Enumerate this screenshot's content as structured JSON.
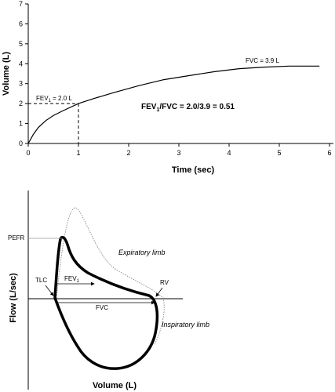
{
  "chart_data": [
    {
      "type": "line",
      "title": "",
      "xlabel": "Time (sec)",
      "ylabel": "Volume (L)",
      "xlim": [
        0,
        6
      ],
      "ylim": [
        0,
        7
      ],
      "xticks": [
        "0",
        "1",
        "2",
        "3",
        "4",
        "5",
        "6"
      ],
      "yticks": [
        "0",
        "1",
        "2",
        "3",
        "4",
        "5",
        "6",
        "7"
      ],
      "grid": false,
      "series": [
        {
          "x": [
            0,
            0.1,
            0.2,
            0.35,
            0.5,
            0.7,
            1.0,
            1.3,
            1.7,
            2.2,
            2.7,
            3.2,
            3.7,
            4.2,
            4.7,
            5.2,
            5.8
          ],
          "y": [
            0,
            0.45,
            0.8,
            1.15,
            1.4,
            1.65,
            2.0,
            2.25,
            2.55,
            2.9,
            3.2,
            3.4,
            3.6,
            3.75,
            3.83,
            3.88,
            3.88
          ],
          "color": "#000000"
        }
      ],
      "annotations": {
        "fev1": {
          "label": "FEV",
          "subscript": "1",
          "suffix": " = 2.0 L",
          "x": 1.0,
          "y": 2.0
        },
        "fvc": "FVC = 3.9 L",
        "ratio": {
          "prefix": "FEV",
          "subscript": "1",
          "suffix": "/FVC = 2.0/3.9 = 0.51"
        }
      }
    },
    {
      "type": "line",
      "title": "",
      "xlabel": "Volume (L)",
      "ylabel": "Flow (L/sec)",
      "series": [
        {
          "name": "",
          "style": "solid-thick",
          "color": "#000000"
        },
        {
          "name": "",
          "style": "dotted",
          "color": "#777777"
        }
      ],
      "labels": {
        "pefr": "PEFR",
        "tlc": "TLC",
        "rv": "RV",
        "fev1": "FEV",
        "fev1_sub": "1",
        "fvc": "FVC",
        "expiratory": "Expiratory limb",
        "inspiratory": "Inspiratory limb"
      }
    }
  ]
}
